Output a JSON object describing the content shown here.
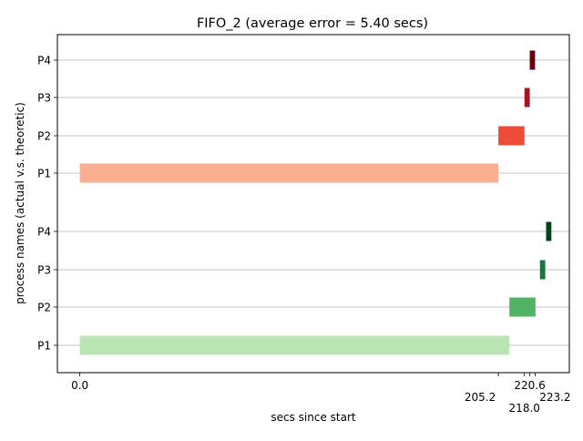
{
  "chart_data": {
    "type": "bar",
    "title": "FIFO_2 (average error = 5.40 secs)",
    "xlabel": "secs since start",
    "ylabel": "process names (actual v.s. theoretic)",
    "xlim": [
      -11.0,
      240.0
    ],
    "x_ticks": [
      0.0,
      205.2,
      218.0,
      220.6,
      223.2
    ],
    "x_tick_labels": [
      "0.0",
      "205.2",
      "218.0",
      "220.6",
      "223.2"
    ],
    "grid": "horizontal",
    "groups": [
      {
        "name": "actual",
        "bars": [
          {
            "label": "P1",
            "start": 0.0,
            "end": 205.2,
            "color": "#fcae91"
          },
          {
            "label": "P2",
            "start": 205.2,
            "end": 218.0,
            "color": "#ef4b3a"
          },
          {
            "label": "P3",
            "start": 218.0,
            "end": 220.6,
            "color": "#a7141d"
          },
          {
            "label": "P4",
            "start": 220.6,
            "end": 223.2,
            "color": "#67000d"
          }
        ]
      },
      {
        "name": "theoretic",
        "bars": [
          {
            "label": "P1",
            "start": 0.0,
            "end": 210.6,
            "color": "#bae4b3"
          },
          {
            "label": "P2",
            "start": 210.6,
            "end": 223.4,
            "color": "#52b365"
          },
          {
            "label": "P3",
            "start": 225.6,
            "end": 228.2,
            "color": "#137a3a"
          },
          {
            "label": "P4",
            "start": 228.6,
            "end": 231.2,
            "color": "#00441b"
          }
        ]
      }
    ]
  }
}
